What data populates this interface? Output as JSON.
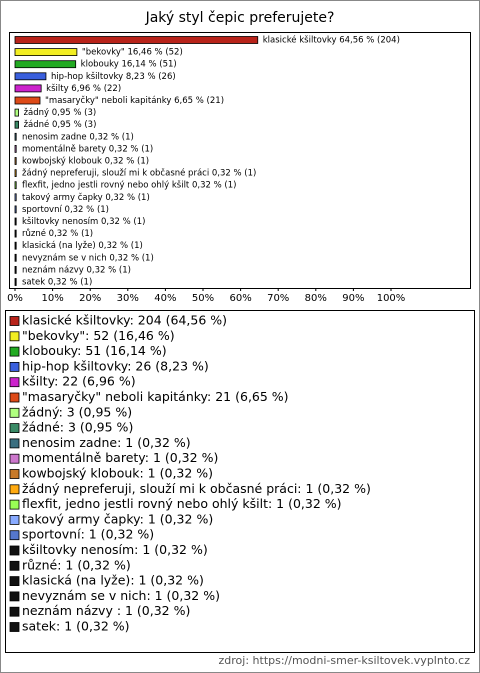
{
  "chart_data": {
    "type": "bar",
    "orientation": "horizontal",
    "title": "Jaký styl čepic preferujete?",
    "values": [
      64.56,
      16.46,
      16.14,
      8.23,
      6.96,
      6.65,
      0.95,
      0.95,
      0.32,
      0.32,
      0.32,
      0.32,
      0.32,
      0.32,
      0.32,
      0.32,
      0.32,
      0.32,
      0.32,
      0.32,
      0.32
    ],
    "value_labels": [
      "klasické kšiltovky 64,56 % (204)",
      "\"bekovky\" 16,46 % (52)",
      "klobouky 16,14 % (51)",
      "hip-hop kšiltovky 8,23 % (26)",
      "kšilty 6,96 % (22)",
      "\"masaryčky\" neboli kapitánky 6,65 % (21)",
      "žádný 0,95 % (3)",
      "žádné 0,95 % (3)",
      "nenosim zadne 0,32 % (1)",
      "momentálně barety 0,32 % (1)",
      "kowbojský klobouk 0,32 % (1)",
      "žádný nepreferuji, slouží mi k občasné práci 0,32 % (1)",
      "flexfit, jedno jestli rovný nebo ohlý kšilt 0,32 % (1)",
      "takový army čapky 0,32 % (1)",
      "sportovní 0,32 % (1)",
      "kšiltovky nenosím 0,32 % (1)",
      "různé 0,32 % (1)",
      "klasická (na lyže) 0,32 % (1)",
      "nevyznám se v nich 0,32 % (1)",
      "neznám názvy 0,32 % (1)",
      "satek 0,32 % (1)"
    ],
    "legend_labels": [
      "klasické kšiltovky: 204 (64,56 %)",
      "\"bekovky\": 52 (16,46 %)",
      "klobouky: 51 (16,14 %)",
      "hip-hop kšiltovky: 26 (8,23 %)",
      "kšilty: 22 (6,96 %)",
      "\"masaryčky\" neboli kapitánky: 21 (6,65 %)",
      "žádný: 3 (0,95 %)",
      "žádné: 3 (0,95 %)",
      "nenosim zadne: 1 (0,32 %)",
      "momentálně barety: 1 (0,32 %)",
      "kowbojský klobouk: 1 (0,32 %)",
      "žádný nepreferuji, slouží mi k občasné práci: 1 (0,32 %)",
      "flexfit, jedno jestli rovný nebo ohlý kšilt: 1 (0,32 %)",
      "takový army čapky: 1 (0,32 %)",
      "sportovní: 1 (0,32 %)",
      "kšiltovky nenosím: 1 (0,32 %)",
      "různé: 1 (0,32 %)",
      "klasická (na lyže): 1 (0,32 %)",
      "nevyznám se v nich: 1 (0,32 %)",
      "neznám názvy : 1 (0,32 %)",
      "satek: 1 (0,32 %)"
    ],
    "colors": [
      "#b8231a",
      "#f2ee22",
      "#22aa22",
      "#3a5fdd",
      "#cc22cc",
      "#dd4a18",
      "#b0ff80",
      "#3a8a66",
      "#3a6f80",
      "#cc77cc",
      "#c87a2a",
      "#ffaa10",
      "#99ff55",
      "#88aaff",
      "#5577cc",
      "#111111",
      "#111111",
      "#111111",
      "#111111",
      "#111111",
      "#111111"
    ],
    "xlim": [
      0,
      120
    ],
    "xticks": [
      {
        "value": 0,
        "label": "0%"
      },
      {
        "value": 10,
        "label": "10%"
      },
      {
        "value": 20,
        "label": "20%"
      },
      {
        "value": 30,
        "label": "30%"
      },
      {
        "value": 40,
        "label": "40%"
      },
      {
        "value": 50,
        "label": "50%"
      },
      {
        "value": 60,
        "label": "60%"
      },
      {
        "value": 70,
        "label": "70%"
      },
      {
        "value": 80,
        "label": "80%"
      },
      {
        "value": 90,
        "label": "90%"
      },
      {
        "value": 100,
        "label": "100%"
      }
    ],
    "source": "zdroj: https://modni-smer-ksiltovek.vyplnto.cz"
  }
}
